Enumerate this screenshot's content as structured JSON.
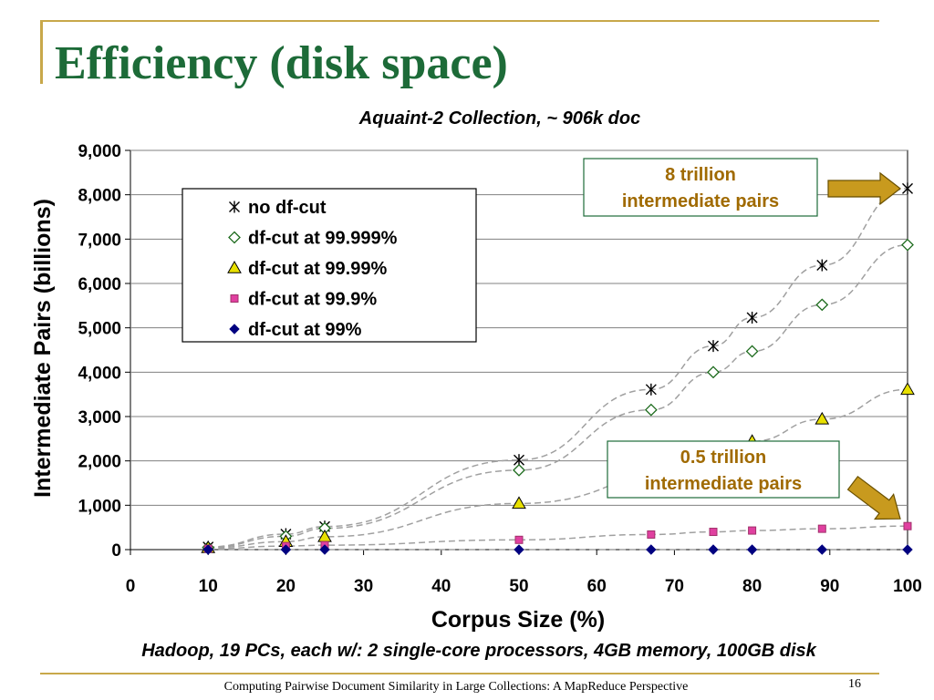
{
  "slide": {
    "title": "Efficiency (disk space)",
    "footer": "Computing Pairwise Document Similarity in Large Collections: A MapReduce Perspective",
    "page_number": "16",
    "accent_color": "#c8a84a",
    "title_color": "#1d6b38"
  },
  "chart_data": {
    "type": "scatter",
    "title": "Aquaint-2 Collection, ~ 906k doc",
    "xlabel": "Corpus Size (%)",
    "ylabel": "Intermediate Pairs (billions)",
    "xlim": [
      0,
      100
    ],
    "ylim": [
      0,
      9000
    ],
    "xticks": [
      "0",
      "10",
      "20",
      "30",
      "40",
      "50",
      "60",
      "70",
      "80",
      "90",
      "100"
    ],
    "yticks": [
      "0",
      "1,000",
      "2,000",
      "3,000",
      "4,000",
      "5,000",
      "6,000",
      "7,000",
      "8,000",
      "9,000"
    ],
    "grid": true,
    "legend_position": "top-left",
    "caption": "Hadoop, 19 PCs, each w/: 2 single-core processors, 4GB memory, 100GB disk",
    "annotations": [
      {
        "text_lines": [
          "8 trillion",
          "intermediate pairs"
        ],
        "color": "#a06a00",
        "target_series": 0
      },
      {
        "text_lines": [
          "0.5 trillion",
          "intermediate pairs"
        ],
        "color": "#a06a00",
        "target_series": 3
      }
    ],
    "series": [
      {
        "name": "no df-cut",
        "marker": "star",
        "color": "#000000",
        "x": [
          10,
          20,
          25,
          50,
          67,
          75,
          80,
          89,
          100
        ],
        "y": [
          60,
          350,
          520,
          2020,
          3610,
          4590,
          5230,
          6410,
          8140
        ]
      },
      {
        "name": "df-cut at 99.999%",
        "marker": "diamond-open",
        "color": "#1d6b1d",
        "x": [
          10,
          20,
          25,
          50,
          67,
          75,
          80,
          89,
          100
        ],
        "y": [
          50,
          300,
          480,
          1790,
          3150,
          4000,
          4470,
          5520,
          6870
        ]
      },
      {
        "name": "df-cut at 99.99%",
        "marker": "triangle",
        "color": "#e8e000",
        "x": [
          10,
          20,
          25,
          50,
          80,
          89,
          100
        ],
        "y": [
          40,
          180,
          290,
          1040,
          2440,
          2940,
          3610
        ]
      },
      {
        "name": "df-cut at 99.9%",
        "marker": "square",
        "color": "#e040a0",
        "x": [
          10,
          20,
          25,
          50,
          67,
          75,
          80,
          89,
          100
        ],
        "y": [
          20,
          80,
          100,
          220,
          340,
          400,
          430,
          470,
          530
        ]
      },
      {
        "name": "df-cut at 99%",
        "marker": "diamond",
        "color": "#000080",
        "x": [
          10,
          20,
          25,
          50,
          67,
          75,
          80,
          89,
          100
        ],
        "y": [
          0,
          0,
          0,
          0,
          0,
          0,
          0,
          0,
          0
        ]
      }
    ]
  }
}
